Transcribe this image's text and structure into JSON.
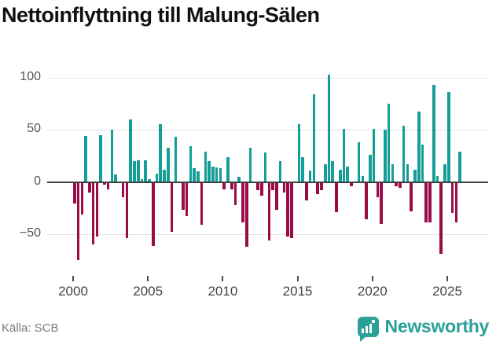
{
  "title": "Nettoinflyttning till Malung-Sälen",
  "source": "Källa: SCB",
  "brand": {
    "name": "Newsworthy",
    "color": "#2aa099",
    "icon": "bar-chart-badge-icon"
  },
  "chart_data": {
    "type": "bar",
    "title": "Nettoinflyttning till Malung-Sälen",
    "frequency": "quarterly",
    "start": "2000 Q1",
    "end": "2025 Q4",
    "values": [
      -21,
      -75,
      -31,
      44,
      -10,
      -60,
      -52,
      45,
      -3,
      -7,
      50,
      7,
      -1,
      -15,
      -54,
      60,
      20,
      21,
      3,
      21,
      3,
      -61,
      8,
      55,
      12,
      33,
      -48,
      43,
      -1,
      -27,
      -33,
      34,
      13,
      10,
      -41,
      29,
      20,
      15,
      14,
      13,
      -7,
      24,
      -7,
      -22,
      5,
      -39,
      -62,
      33,
      -1,
      -8,
      -13,
      28,
      -56,
      -8,
      -27,
      20,
      -10,
      -52,
      -54,
      -1,
      55,
      24,
      -18,
      11,
      84,
      -12,
      -8,
      17,
      103,
      20,
      -29,
      12,
      51,
      15,
      -4,
      -1,
      38,
      6,
      -36,
      26,
      51,
      -15,
      -40,
      50,
      75,
      17,
      -4,
      -6,
      54,
      17,
      -28,
      12,
      67,
      36,
      -39,
      -39,
      93,
      6,
      -69,
      17,
      86,
      -30,
      -39,
      29
    ],
    "x_tick_labels": [
      "2000",
      "2005",
      "2010",
      "2015",
      "2020",
      "2025"
    ],
    "x_tick_years": [
      2000,
      2005,
      2010,
      2015,
      2020,
      2025
    ],
    "y_ticks": [
      100,
      50,
      0,
      -50
    ],
    "ylim": [
      -86,
      110
    ],
    "grid": "horizontal",
    "legend": "none",
    "colors": {
      "positive": "#149e97",
      "negative": "#9b0c47",
      "zero_axis": "#3f3f3f",
      "grid": "#e3e3e3"
    }
  }
}
